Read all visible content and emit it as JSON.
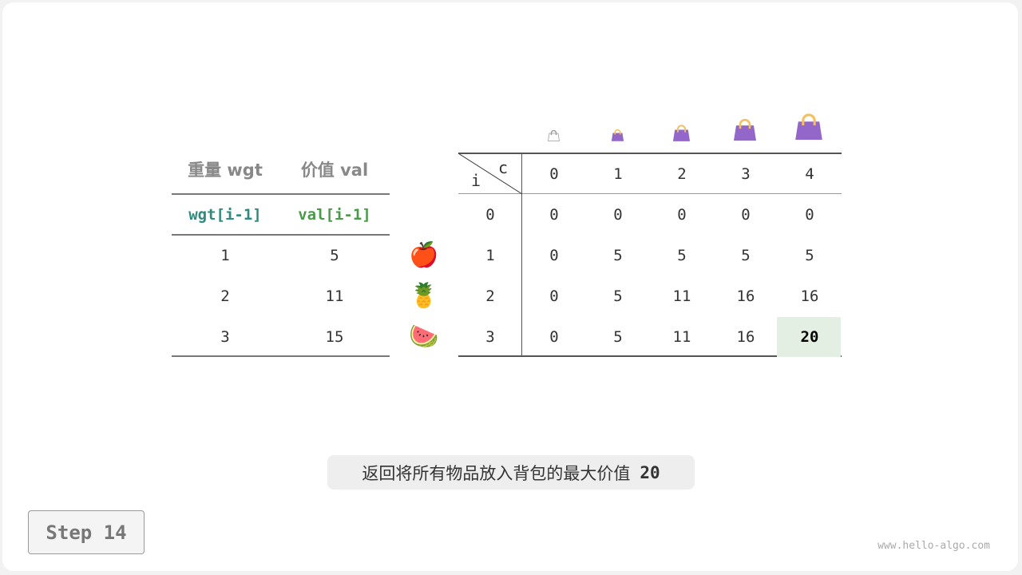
{
  "left_table": {
    "headers": [
      "重量 wgt",
      "价值 val"
    ],
    "subheaders": [
      "wgt[i-1]",
      "val[i-1]"
    ],
    "rows": [
      [
        "1",
        "5"
      ],
      [
        "2",
        "11"
      ],
      [
        "3",
        "15"
      ]
    ],
    "item_icons": [
      "apple-icon",
      "pineapple-icon",
      "watermelon-icon"
    ]
  },
  "dp_table": {
    "corner_row_label": "i",
    "corner_col_label": "c",
    "col_headers": [
      "0",
      "1",
      "2",
      "3",
      "4"
    ],
    "row_headers": [
      "0",
      "1",
      "2",
      "3"
    ],
    "rows": [
      [
        "0",
        "0",
        "0",
        "0",
        "0"
      ],
      [
        "0",
        "5",
        "5",
        "5",
        "5"
      ],
      [
        "0",
        "5",
        "11",
        "16",
        "16"
      ],
      [
        "0",
        "5",
        "11",
        "16",
        "20"
      ]
    ],
    "highlight_cell": {
      "row": 3,
      "col": 4,
      "color": "#e3efe3"
    },
    "capacity_icons": [
      "bag-icon",
      "bag-icon",
      "bag-icon",
      "bag-icon",
      "bag-icon"
    ]
  },
  "caption": {
    "text": "返回将所有物品放入背包的最大价值",
    "value": "20"
  },
  "step_label": "Step 14",
  "watermark": "www.hello-algo.com",
  "colors": {
    "wgt": "#2e8b7e",
    "val": "#4a9a4a",
    "bag": "#9366c9",
    "handle": "#f5c060"
  }
}
